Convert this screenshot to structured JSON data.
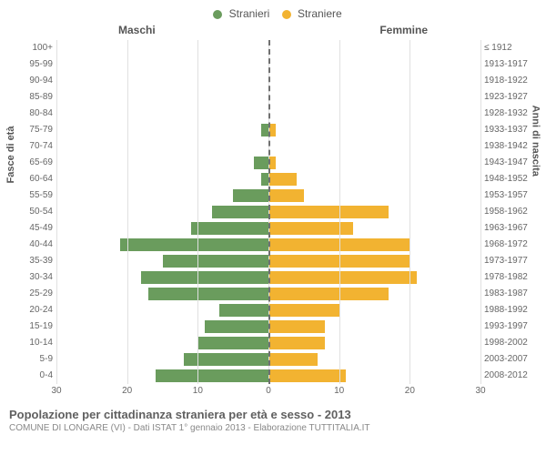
{
  "chart": {
    "type": "population-pyramid",
    "legend": {
      "male": "Stranieri",
      "female": "Straniere"
    },
    "headers": {
      "male": "Maschi",
      "female": "Femmine"
    },
    "axis_left_title": "Fasce di età",
    "axis_right_title": "Anni di nascita",
    "colors": {
      "male": "#6a9c5d",
      "female": "#f2b331",
      "grid": "#e0e0e0",
      "center": "#707070",
      "background": "#ffffff"
    },
    "xmax": 30,
    "xticks": [
      30,
      20,
      10,
      0,
      10,
      20,
      30
    ],
    "label_fontsize": 10,
    "categories": [
      {
        "age": "100+",
        "birth": "≤ 1912",
        "m": 0,
        "f": 0
      },
      {
        "age": "95-99",
        "birth": "1913-1917",
        "m": 0,
        "f": 0
      },
      {
        "age": "90-94",
        "birth": "1918-1922",
        "m": 0,
        "f": 0
      },
      {
        "age": "85-89",
        "birth": "1923-1927",
        "m": 0,
        "f": 0
      },
      {
        "age": "80-84",
        "birth": "1928-1932",
        "m": 0,
        "f": 0
      },
      {
        "age": "75-79",
        "birth": "1933-1937",
        "m": 1,
        "f": 1
      },
      {
        "age": "70-74",
        "birth": "1938-1942",
        "m": 0,
        "f": 0
      },
      {
        "age": "65-69",
        "birth": "1943-1947",
        "m": 2,
        "f": 1
      },
      {
        "age": "60-64",
        "birth": "1948-1952",
        "m": 1,
        "f": 4
      },
      {
        "age": "55-59",
        "birth": "1953-1957",
        "m": 5,
        "f": 5
      },
      {
        "age": "50-54",
        "birth": "1958-1962",
        "m": 8,
        "f": 17
      },
      {
        "age": "45-49",
        "birth": "1963-1967",
        "m": 11,
        "f": 12
      },
      {
        "age": "40-44",
        "birth": "1968-1972",
        "m": 21,
        "f": 20
      },
      {
        "age": "35-39",
        "birth": "1973-1977",
        "m": 15,
        "f": 20
      },
      {
        "age": "30-34",
        "birth": "1978-1982",
        "m": 18,
        "f": 21
      },
      {
        "age": "25-29",
        "birth": "1983-1987",
        "m": 17,
        "f": 17
      },
      {
        "age": "20-24",
        "birth": "1988-1992",
        "m": 7,
        "f": 10
      },
      {
        "age": "15-19",
        "birth": "1993-1997",
        "m": 9,
        "f": 8
      },
      {
        "age": "10-14",
        "birth": "1998-2002",
        "m": 10,
        "f": 8
      },
      {
        "age": "5-9",
        "birth": "2003-2007",
        "m": 12,
        "f": 7
      },
      {
        "age": "0-4",
        "birth": "2008-2012",
        "m": 16,
        "f": 11
      }
    ]
  },
  "footer": {
    "title": "Popolazione per cittadinanza straniera per età e sesso - 2013",
    "subtitle": "COMUNE DI LONGARE (VI) - Dati ISTAT 1° gennaio 2013 - Elaborazione TUTTITALIA.IT"
  }
}
